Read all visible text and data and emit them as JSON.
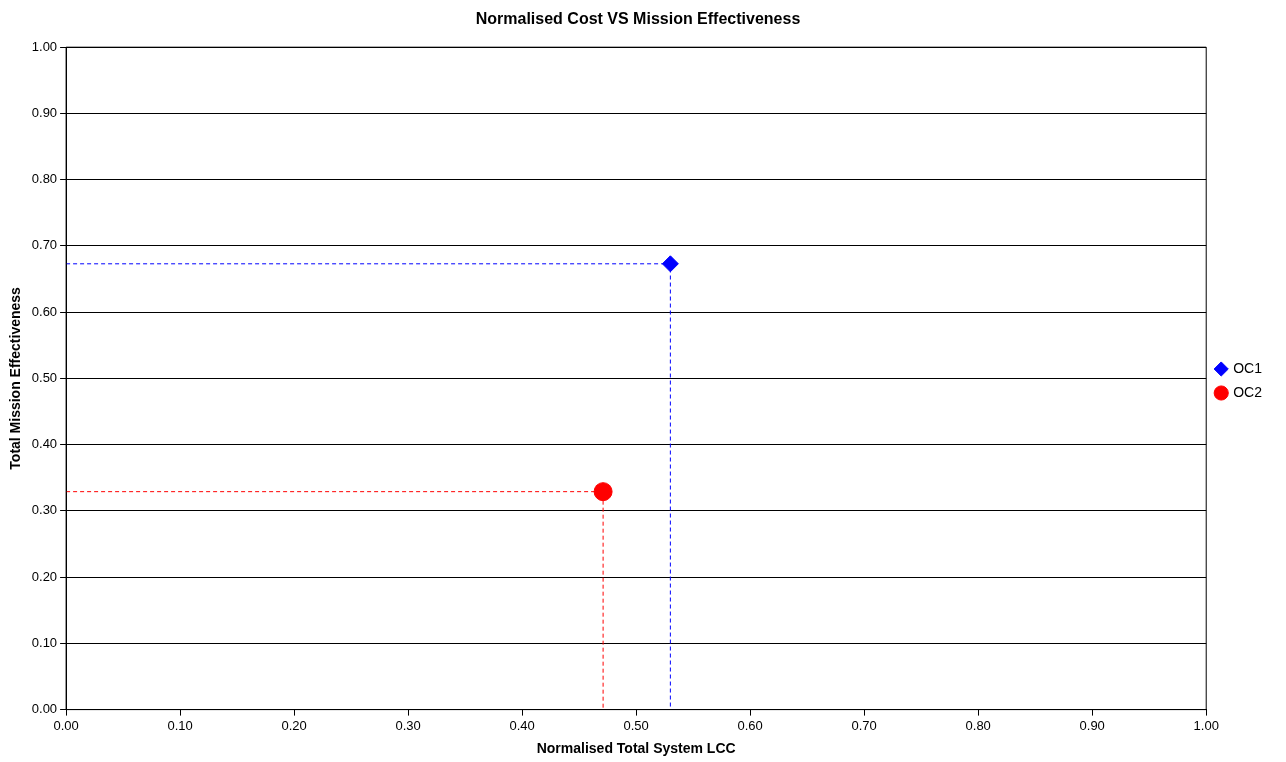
{
  "chart_data": {
    "type": "scatter",
    "title": "Normalised Cost VS Mission Effectiveness",
    "xlabel": "Normalised Total System LCC",
    "ylabel": "Total Mission Effectiveness",
    "xlim": [
      0,
      1
    ],
    "ylim": [
      0,
      1
    ],
    "xticks": [
      {
        "value": 0,
        "label": "0.00"
      },
      {
        "value": 0.1,
        "label": "0.10"
      },
      {
        "value": 0.2,
        "label": "0.20"
      },
      {
        "value": 0.3,
        "label": "0.30"
      },
      {
        "value": 0.4,
        "label": "0.40"
      },
      {
        "value": 0.5,
        "label": "0.50"
      },
      {
        "value": 0.6,
        "label": "0.60"
      },
      {
        "value": 0.7,
        "label": "0.70"
      },
      {
        "value": 0.8,
        "label": "0.80"
      },
      {
        "value": 0.9,
        "label": "0.90"
      },
      {
        "value": 1,
        "label": "1.00"
      }
    ],
    "yticks": [
      {
        "value": 0,
        "label": "0.00"
      },
      {
        "value": 0.1,
        "label": "0.10"
      },
      {
        "value": 0.2,
        "label": "0.20"
      },
      {
        "value": 0.3,
        "label": "0.30"
      },
      {
        "value": 0.4,
        "label": "0.40"
      },
      {
        "value": 0.5,
        "label": "0.50"
      },
      {
        "value": 0.6,
        "label": "0.60"
      },
      {
        "value": 0.7,
        "label": "0.70"
      },
      {
        "value": 0.8,
        "label": "0.80"
      },
      {
        "value": 0.9,
        "label": "0.90"
      },
      {
        "value": 1,
        "label": "1.00"
      }
    ],
    "grid": "y",
    "legend": "right",
    "series": [
      {
        "type": "line",
        "color": "#0000ff",
        "x": [
          0,
          0.53,
          0.53
        ],
        "values": [
          0.673,
          0.673,
          0
        ],
        "marker": "none",
        "line_style": "dashed"
      },
      {
        "type": "line",
        "color": "#ff0000",
        "x": [
          0,
          0.471,
          0.471
        ],
        "values": [
          0.329,
          0.329,
          0
        ],
        "marker": "none",
        "line_style": "dashed"
      },
      {
        "name": "OC1",
        "color": "#0000ff",
        "x": [
          0.53
        ],
        "values": [
          0.673
        ],
        "marker": "diamond"
      },
      {
        "name": "OC2",
        "color": "#ff0000",
        "x": [
          0.471
        ],
        "values": [
          0.329
        ],
        "marker": "circle"
      }
    ]
  }
}
